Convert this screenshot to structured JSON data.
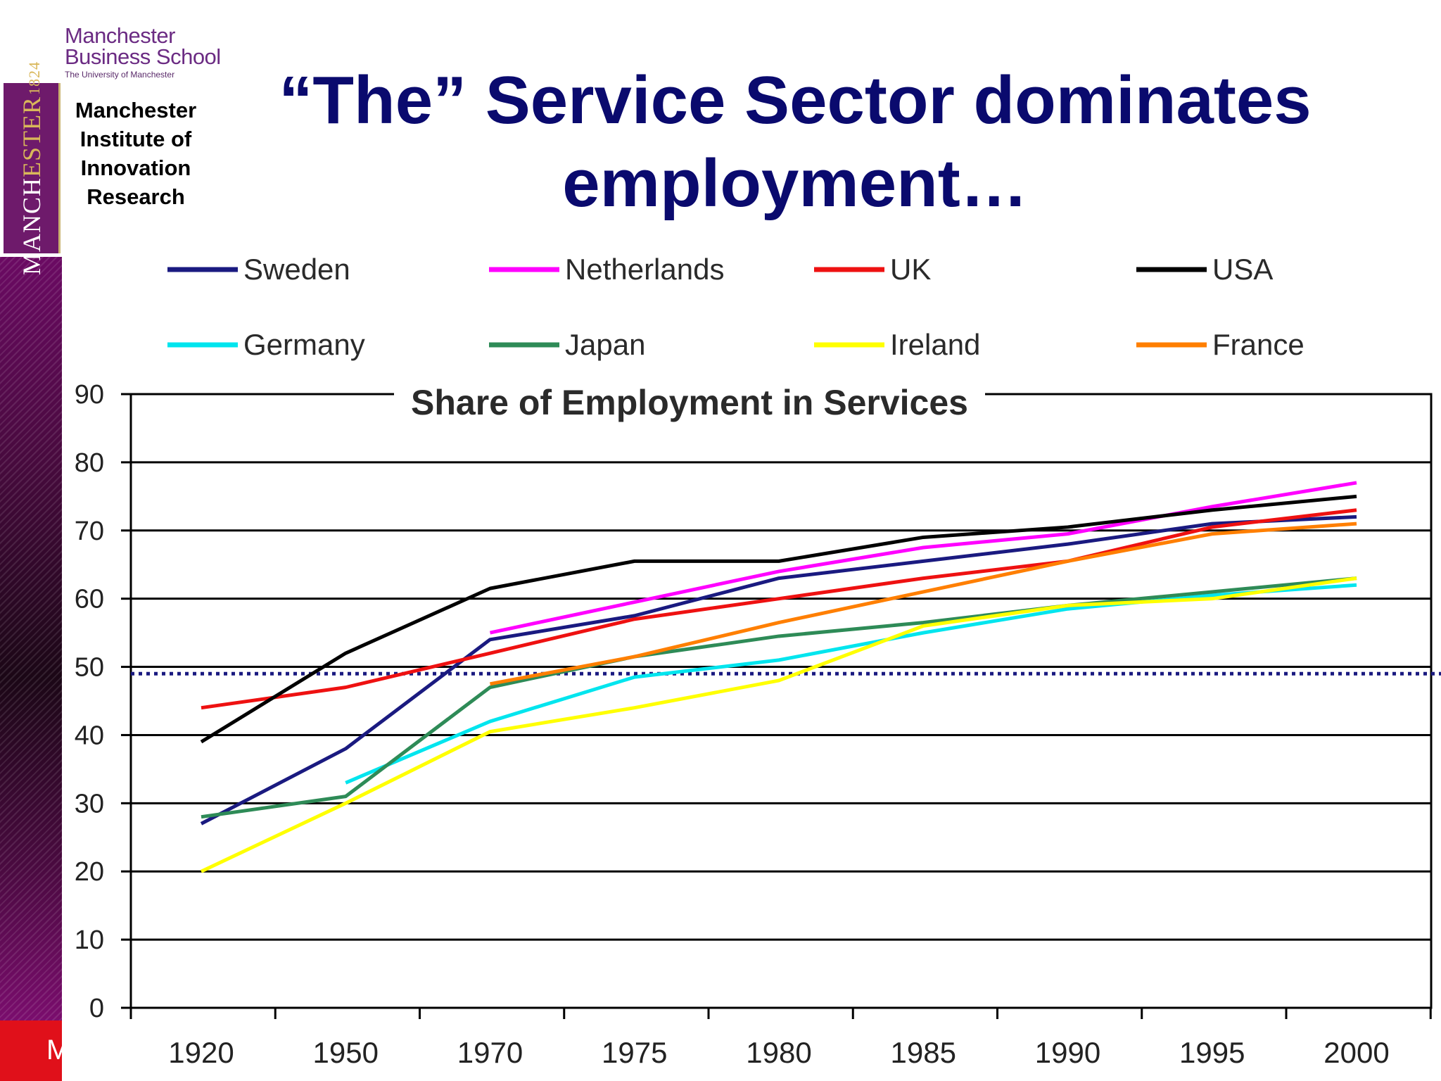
{
  "slide": {
    "title_line1": "“The” Service Sector dominates",
    "title_line2": "employment…",
    "institute_lines": [
      "Manchester",
      "Institute of",
      "Innovation",
      "Research"
    ],
    "footer_letter": "M"
  },
  "branding": {
    "mbs_line1": "Manchester",
    "mbs_line2": "Business School",
    "mbs_line3": "The University of Manchester",
    "crest_word_a": "MANCH",
    "crest_word_b": "ESTER",
    "crest_year": "1824"
  },
  "colors": {
    "title": "#0a0a6e",
    "accent_purple": "#6e1a6b",
    "footer_red": "#e0101a"
  },
  "chart_data": {
    "type": "line",
    "title": "Share of Employment in Services",
    "xlabel": "",
    "ylabel": "",
    "ylim": [
      0,
      90
    ],
    "yticks": [
      0,
      10,
      20,
      30,
      40,
      50,
      60,
      70,
      80,
      90
    ],
    "categories": [
      "1920",
      "1950",
      "1970",
      "1975",
      "1980",
      "1985",
      "1990",
      "1995",
      "2000"
    ],
    "reference_line": {
      "value": 49,
      "style": "dotted",
      "color": "#1a1a80"
    },
    "legend_position": "top",
    "series": [
      {
        "name": "Sweden",
        "color": "#1a1a80",
        "values": [
          27,
          38,
          54,
          57.5,
          63,
          65.5,
          68,
          71,
          72
        ]
      },
      {
        "name": "Netherlands",
        "color": "#ff00ff",
        "values": [
          null,
          null,
          55,
          59.5,
          64,
          67.5,
          69.5,
          73.5,
          77
        ]
      },
      {
        "name": "UK",
        "color": "#ee1111",
        "values": [
          44,
          47,
          52,
          57,
          60,
          63,
          65.5,
          70.5,
          73
        ]
      },
      {
        "name": "USA",
        "color": "#000000",
        "values": [
          39,
          52,
          61.5,
          65.5,
          65.5,
          69,
          70.5,
          73,
          75
        ]
      },
      {
        "name": "Germany",
        "color": "#00e5ee",
        "values": [
          null,
          33,
          42,
          48.5,
          51,
          55,
          58.5,
          60.5,
          62
        ]
      },
      {
        "name": "Japan",
        "color": "#2e8b57",
        "values": [
          28,
          31,
          47,
          51.5,
          54.5,
          56.5,
          59,
          61,
          63
        ]
      },
      {
        "name": "Ireland",
        "color": "#ffff00",
        "values": [
          20,
          30,
          40.5,
          44,
          48,
          56,
          59,
          60,
          63
        ]
      },
      {
        "name": "France",
        "color": "#ff7f00",
        "values": [
          null,
          null,
          47.5,
          51.5,
          56.5,
          61,
          65.5,
          69.5,
          71
        ]
      }
    ]
  }
}
